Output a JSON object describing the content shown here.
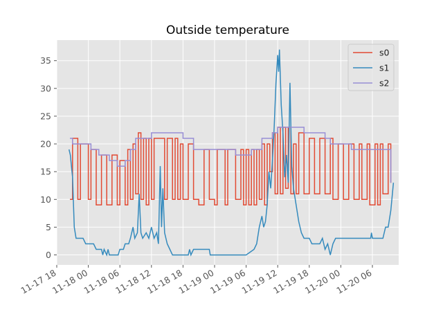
{
  "chart_data": {
    "type": "line",
    "title": "Outside temperature",
    "xlabel": "",
    "ylabel": "",
    "x_ticks": [
      "11-17 18",
      "11-18 00",
      "11-18 06",
      "11-18 12",
      "11-18 18",
      "11-19 00",
      "11-19 06",
      "11-19 12",
      "11-19 18",
      "11-20 00",
      "11-20 06"
    ],
    "x_range": [
      "2019-11-17T18:00",
      "2019-11-20T11:00"
    ],
    "y_ticks": [
      0,
      5,
      10,
      15,
      20,
      25,
      30,
      35
    ],
    "ylim": [
      -1.8,
      38.7
    ],
    "grid": true,
    "legend_position": "top-right",
    "colors": {
      "s0": "#E24A33",
      "s1": "#348ABD",
      "s2": "#988ED5",
      "background": "#E5E5E5",
      "grid": "#FFFFFF"
    },
    "series": [
      {
        "name": "s0",
        "step": true,
        "points": [
          [
            "2019-11-17T20:30",
            10
          ],
          [
            "2019-11-17T21:00",
            21
          ],
          [
            "2019-11-17T22:00",
            10
          ],
          [
            "2019-11-17T22:30",
            20
          ],
          [
            "2019-11-18T00:00",
            10
          ],
          [
            "2019-11-18T00:30",
            19
          ],
          [
            "2019-11-18T01:30",
            9
          ],
          [
            "2019-11-18T02:30",
            18
          ],
          [
            "2019-11-18T03:30",
            9
          ],
          [
            "2019-11-18T04:30",
            18
          ],
          [
            "2019-11-18T05:30",
            9
          ],
          [
            "2019-11-18T06:00",
            17
          ],
          [
            "2019-11-18T07:00",
            9
          ],
          [
            "2019-11-18T07:30",
            19
          ],
          [
            "2019-11-18T08:00",
            10
          ],
          [
            "2019-11-18T08:30",
            20
          ],
          [
            "2019-11-18T09:00",
            11
          ],
          [
            "2019-11-18T09:30",
            22
          ],
          [
            "2019-11-18T10:00",
            10
          ],
          [
            "2019-11-18T10:30",
            21
          ],
          [
            "2019-11-18T11:00",
            9
          ],
          [
            "2019-11-18T11:30",
            21
          ],
          [
            "2019-11-18T12:00",
            10
          ],
          [
            "2019-11-18T12:30",
            21
          ],
          [
            "2019-11-18T14:30",
            10
          ],
          [
            "2019-11-18T15:00",
            21
          ],
          [
            "2019-11-18T16:00",
            10
          ],
          [
            "2019-11-18T16:30",
            21
          ],
          [
            "2019-11-18T17:00",
            10
          ],
          [
            "2019-11-18T17:30",
            20
          ],
          [
            "2019-11-18T18:00",
            10
          ],
          [
            "2019-11-18T19:00",
            20
          ],
          [
            "2019-11-18T20:00",
            10
          ],
          [
            "2019-11-18T21:00",
            9
          ],
          [
            "2019-11-18T22:00",
            19
          ],
          [
            "2019-11-18T23:00",
            10
          ],
          [
            "2019-11-19T00:00",
            9
          ],
          [
            "2019-11-19T00:30",
            19
          ],
          [
            "2019-11-19T02:00",
            9
          ],
          [
            "2019-11-19T02:30",
            19
          ],
          [
            "2019-11-19T04:00",
            10
          ],
          [
            "2019-11-19T05:00",
            19
          ],
          [
            "2019-11-19T05:30",
            9
          ],
          [
            "2019-11-19T06:00",
            19
          ],
          [
            "2019-11-19T06:30",
            9
          ],
          [
            "2019-11-19T07:00",
            19
          ],
          [
            "2019-11-19T07:30",
            9
          ],
          [
            "2019-11-19T08:00",
            19
          ],
          [
            "2019-11-19T08:30",
            10
          ],
          [
            "2019-11-19T09:00",
            20
          ],
          [
            "2019-11-19T09:30",
            9
          ],
          [
            "2019-11-19T10:00",
            20
          ],
          [
            "2019-11-19T10:30",
            15
          ],
          [
            "2019-11-19T11:00",
            22
          ],
          [
            "2019-11-19T11:30",
            11
          ],
          [
            "2019-11-19T12:00",
            23
          ],
          [
            "2019-11-19T12:30",
            11
          ],
          [
            "2019-11-19T13:00",
            23
          ],
          [
            "2019-11-19T13:30",
            12
          ],
          [
            "2019-11-19T14:00",
            23
          ],
          [
            "2019-11-19T14:30",
            11
          ],
          [
            "2019-11-19T15:00",
            20
          ],
          [
            "2019-11-19T15:30",
            11
          ],
          [
            "2019-11-19T16:00",
            22
          ],
          [
            "2019-11-19T17:00",
            11
          ],
          [
            "2019-11-19T18:00",
            21
          ],
          [
            "2019-11-19T19:00",
            11
          ],
          [
            "2019-11-19T20:00",
            21
          ],
          [
            "2019-11-19T21:00",
            11
          ],
          [
            "2019-11-19T22:00",
            21
          ],
          [
            "2019-11-19T22:30",
            10
          ],
          [
            "2019-11-19T23:30",
            20
          ],
          [
            "2019-11-20T00:30",
            10
          ],
          [
            "2019-11-20T01:30",
            20
          ],
          [
            "2019-11-20T02:30",
            10
          ],
          [
            "2019-11-20T03:30",
            20
          ],
          [
            "2019-11-20T04:00",
            10
          ],
          [
            "2019-11-20T05:00",
            20
          ],
          [
            "2019-11-20T05:30",
            9
          ],
          [
            "2019-11-20T06:30",
            20
          ],
          [
            "2019-11-20T07:00",
            9
          ],
          [
            "2019-11-20T07:30",
            20
          ],
          [
            "2019-11-20T08:00",
            11
          ],
          [
            "2019-11-20T09:00",
            20
          ],
          [
            "2019-11-20T09:30",
            13
          ]
        ]
      },
      {
        "name": "s1",
        "step": false,
        "points": [
          [
            "2019-11-17T20:20",
            19
          ],
          [
            "2019-11-17T20:35",
            18
          ],
          [
            "2019-11-17T21:00",
            14
          ],
          [
            "2019-11-17T21:20",
            5
          ],
          [
            "2019-11-17T21:40",
            3
          ],
          [
            "2019-11-17T23:00",
            3
          ],
          [
            "2019-11-17T23:30",
            2
          ],
          [
            "2019-11-18T01:00",
            2
          ],
          [
            "2019-11-18T01:30",
            1
          ],
          [
            "2019-11-18T02:30",
            1
          ],
          [
            "2019-11-18T02:45",
            0
          ],
          [
            "2019-11-18T03:00",
            1
          ],
          [
            "2019-11-18T03:30",
            0
          ],
          [
            "2019-11-18T03:45",
            1
          ],
          [
            "2019-11-18T04:00",
            0
          ],
          [
            "2019-11-18T05:40",
            0
          ],
          [
            "2019-11-18T06:00",
            1
          ],
          [
            "2019-11-18T06:40",
            1
          ],
          [
            "2019-11-18T07:00",
            2
          ],
          [
            "2019-11-18T07:40",
            2
          ],
          [
            "2019-11-18T08:00",
            3
          ],
          [
            "2019-11-18T08:30",
            5
          ],
          [
            "2019-11-18T08:50",
            3
          ],
          [
            "2019-11-18T09:20",
            4
          ],
          [
            "2019-11-18T09:40",
            11
          ],
          [
            "2019-11-18T10:00",
            4
          ],
          [
            "2019-11-18T10:20",
            3
          ],
          [
            "2019-11-18T11:00",
            4
          ],
          [
            "2019-11-18T11:30",
            3
          ],
          [
            "2019-11-18T12:00",
            5
          ],
          [
            "2019-11-18T12:30",
            3
          ],
          [
            "2019-11-18T13:00",
            4
          ],
          [
            "2019-11-18T13:20",
            2
          ],
          [
            "2019-11-18T13:40",
            16
          ],
          [
            "2019-11-18T13:55",
            5
          ],
          [
            "2019-11-18T14:10",
            12
          ],
          [
            "2019-11-18T14:30",
            4
          ],
          [
            "2019-11-18T15:00",
            2
          ],
          [
            "2019-11-18T15:30",
            1
          ],
          [
            "2019-11-18T16:00",
            0
          ],
          [
            "2019-11-18T19:00",
            0
          ],
          [
            "2019-11-18T19:15",
            1
          ],
          [
            "2019-11-18T19:30",
            0
          ],
          [
            "2019-11-18T20:00",
            1
          ],
          [
            "2019-11-18T23:00",
            1
          ],
          [
            "2019-11-18T23:10",
            0
          ],
          [
            "2019-11-19T06:00",
            0
          ],
          [
            "2019-11-19T07:30",
            1
          ],
          [
            "2019-11-19T08:00",
            2
          ],
          [
            "2019-11-19T08:30",
            5
          ],
          [
            "2019-11-19T09:00",
            7
          ],
          [
            "2019-11-19T09:20",
            5
          ],
          [
            "2019-11-19T09:40",
            6
          ],
          [
            "2019-11-19T10:00",
            9
          ],
          [
            "2019-11-19T10:20",
            15
          ],
          [
            "2019-11-19T10:40",
            12
          ],
          [
            "2019-11-19T11:00",
            17
          ],
          [
            "2019-11-19T11:20",
            23
          ],
          [
            "2019-11-19T11:40",
            31
          ],
          [
            "2019-11-19T12:00",
            36
          ],
          [
            "2019-11-19T12:10",
            33
          ],
          [
            "2019-11-19T12:20",
            37
          ],
          [
            "2019-11-19T12:40",
            27
          ],
          [
            "2019-11-19T13:00",
            22
          ],
          [
            "2019-11-19T13:20",
            14
          ],
          [
            "2019-11-19T13:40",
            18
          ],
          [
            "2019-11-19T14:00",
            13
          ],
          [
            "2019-11-19T14:20",
            31
          ],
          [
            "2019-11-19T14:40",
            16
          ],
          [
            "2019-11-19T15:00",
            12
          ],
          [
            "2019-11-19T15:30",
            9
          ],
          [
            "2019-11-19T16:00",
            6
          ],
          [
            "2019-11-19T16:30",
            4
          ],
          [
            "2019-11-19T17:00",
            3
          ],
          [
            "2019-11-19T18:00",
            3
          ],
          [
            "2019-11-19T18:30",
            2
          ],
          [
            "2019-11-19T20:00",
            2
          ],
          [
            "2019-11-19T20:30",
            3
          ],
          [
            "2019-11-19T21:00",
            1
          ],
          [
            "2019-11-19T21:30",
            2
          ],
          [
            "2019-11-19T22:00",
            0
          ],
          [
            "2019-11-19T22:30",
            2
          ],
          [
            "2019-11-19T23:00",
            3
          ],
          [
            "2019-11-20T05:40",
            3
          ],
          [
            "2019-11-20T05:50",
            4
          ],
          [
            "2019-11-20T06:00",
            3
          ],
          [
            "2019-11-20T08:00",
            3
          ],
          [
            "2019-11-20T08:30",
            5
          ],
          [
            "2019-11-20T09:00",
            5
          ],
          [
            "2019-11-20T09:30",
            8
          ],
          [
            "2019-11-20T10:00",
            13
          ]
        ]
      },
      {
        "name": "s2",
        "step": true,
        "points": [
          [
            "2019-11-17T20:30",
            21
          ],
          [
            "2019-11-17T21:00",
            20
          ],
          [
            "2019-11-18T00:30",
            19
          ],
          [
            "2019-11-18T02:00",
            18
          ],
          [
            "2019-11-18T04:00",
            17
          ],
          [
            "2019-11-18T05:30",
            16
          ],
          [
            "2019-11-18T07:00",
            17
          ],
          [
            "2019-11-18T08:00",
            19
          ],
          [
            "2019-11-18T09:00",
            21
          ],
          [
            "2019-11-18T12:00",
            22
          ],
          [
            "2019-11-18T18:00",
            21
          ],
          [
            "2019-11-18T20:00",
            19
          ],
          [
            "2019-11-19T04:00",
            18
          ],
          [
            "2019-11-19T07:00",
            19
          ],
          [
            "2019-11-19T09:00",
            21
          ],
          [
            "2019-11-19T11:00",
            22
          ],
          [
            "2019-11-19T12:00",
            23
          ],
          [
            "2019-11-19T17:00",
            22
          ],
          [
            "2019-11-19T21:00",
            21
          ],
          [
            "2019-11-19T22:00",
            20
          ],
          [
            "2019-11-20T02:00",
            19
          ],
          [
            "2019-11-20T09:30",
            13
          ]
        ]
      }
    ]
  }
}
